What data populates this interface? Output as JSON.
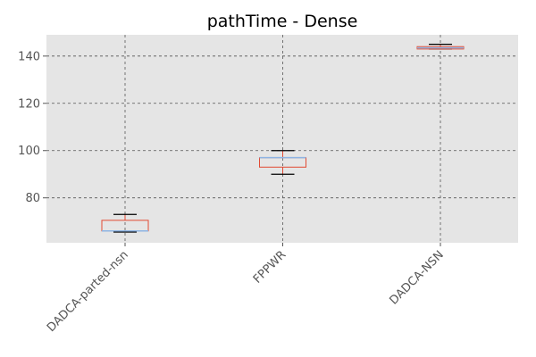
{
  "chart_data": {
    "type": "box",
    "title": "pathTime - Dense",
    "xlabel": "",
    "ylabel": "",
    "ylim": [
      61,
      149
    ],
    "yticks": [
      80,
      100,
      120,
      140
    ],
    "grid": true,
    "colors": {
      "background": "#e5e5e5",
      "box": "#e24a33",
      "median": "#8eb4e3",
      "whisker": "#e24a33",
      "cap": "#000000",
      "grid": "#555555"
    },
    "categories": [
      "DADCA-parted-nsn",
      "FPPWR",
      "DADCA-NSN"
    ],
    "boxes": [
      {
        "whislo": 65.5,
        "q1": 66,
        "med": 66,
        "q3": 70.5,
        "whishi": 73
      },
      {
        "whislo": 90,
        "q1": 93,
        "med": 97,
        "q3": 97,
        "whishi": 100
      },
      {
        "whislo": 143,
        "q1": 143,
        "med": 143.5,
        "q3": 144,
        "whishi": 145
      }
    ]
  }
}
